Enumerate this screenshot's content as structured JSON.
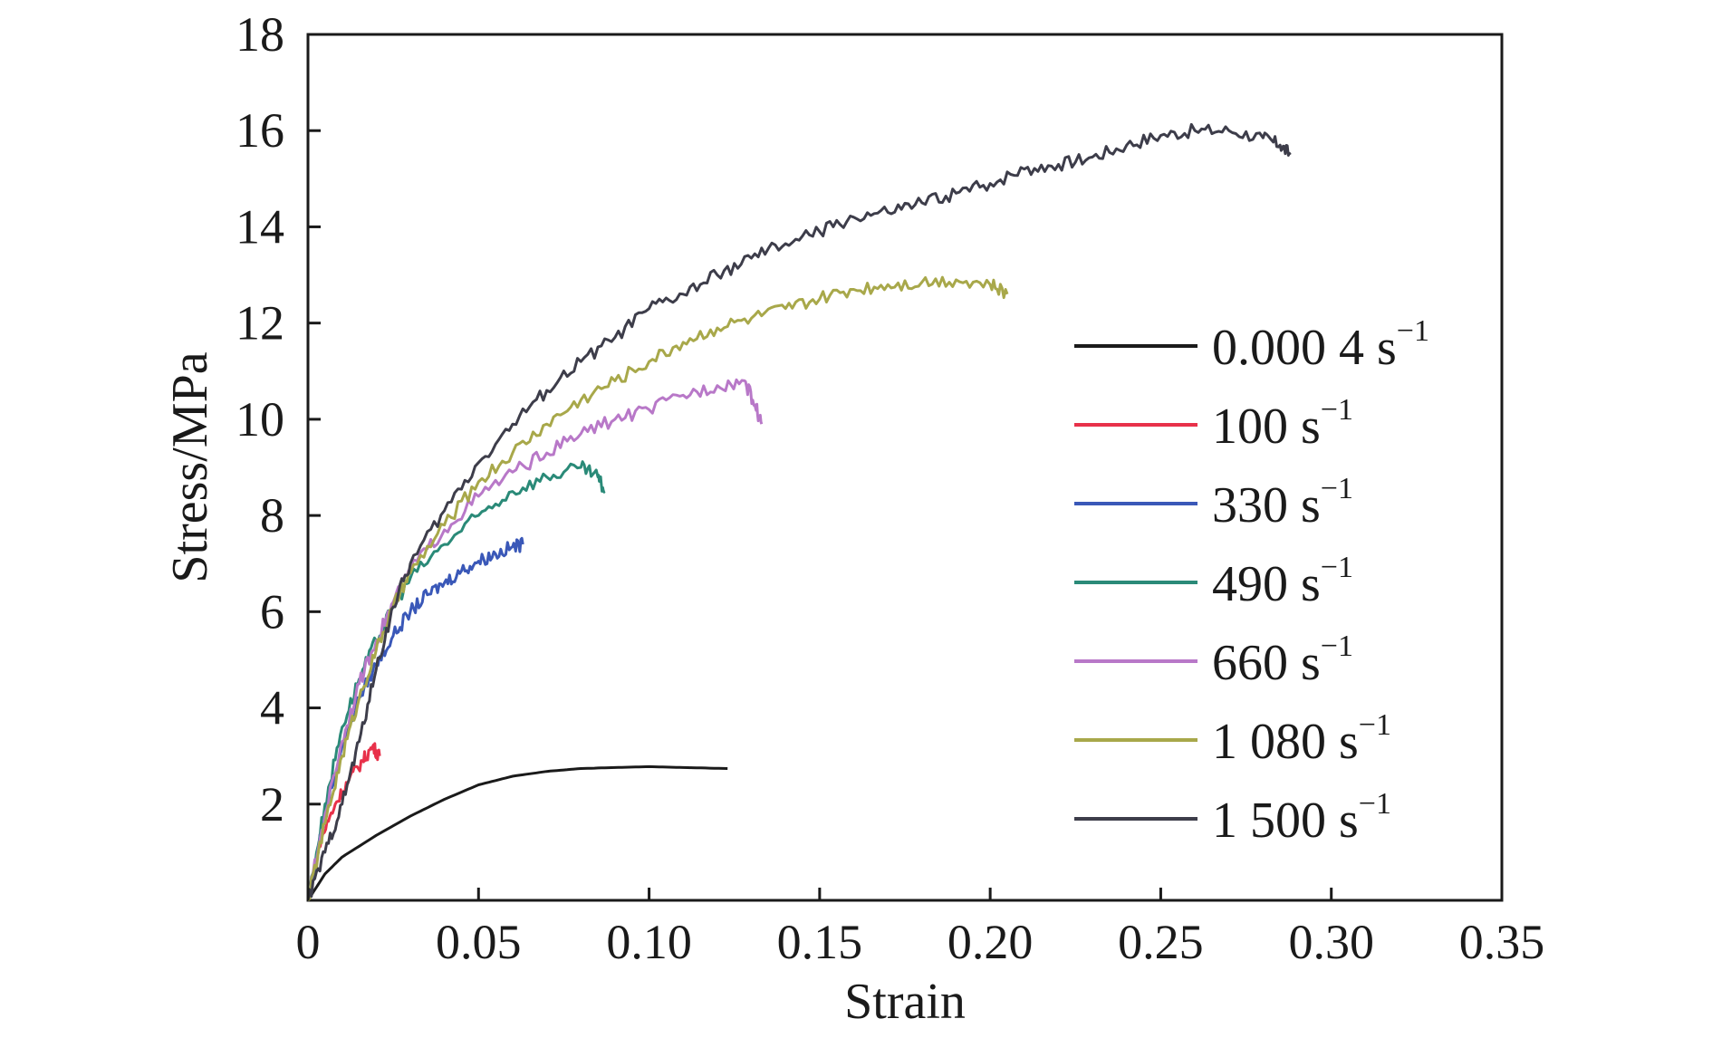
{
  "chart_data": {
    "type": "line",
    "title": "",
    "xlabel": "Strain",
    "ylabel": "Stress/MPa",
    "xlim": [
      0,
      0.35
    ],
    "ylim": [
      0,
      18
    ],
    "x_tick_labels": [
      "0",
      "0.05",
      "0.10",
      "0.15",
      "0.20",
      "0.25",
      "0.30",
      "0.35"
    ],
    "x_tick_values": [
      0,
      0.05,
      0.1,
      0.15,
      0.2,
      0.25,
      0.3,
      0.35
    ],
    "y_tick_labels": [
      "2",
      "4",
      "6",
      "8",
      "10",
      "12",
      "14",
      "16",
      "18"
    ],
    "y_tick_values": [
      2,
      4,
      6,
      8,
      10,
      12,
      14,
      16,
      18
    ],
    "grid": false,
    "legend_position": "right",
    "series": [
      {
        "name": "0.000 4 s",
        "name_exponent": "−1",
        "color": "#1a1a1a",
        "points": [
          [
            0,
            0
          ],
          [
            0.005,
            0.55
          ],
          [
            0.01,
            0.9
          ],
          [
            0.02,
            1.35
          ],
          [
            0.03,
            1.75
          ],
          [
            0.04,
            2.1
          ],
          [
            0.05,
            2.4
          ],
          [
            0.06,
            2.58
          ],
          [
            0.07,
            2.68
          ],
          [
            0.08,
            2.74
          ],
          [
            0.09,
            2.76
          ],
          [
            0.1,
            2.78
          ],
          [
            0.11,
            2.76
          ],
          [
            0.123,
            2.74
          ]
        ]
      },
      {
        "name": "100 s",
        "name_exponent": "−1",
        "color": "#e8314a",
        "points": [
          [
            0,
            0
          ],
          [
            0.004,
            1.3
          ],
          [
            0.008,
            2.0
          ],
          [
            0.012,
            2.5
          ],
          [
            0.016,
            2.9
          ],
          [
            0.019,
            3.2
          ],
          [
            0.021,
            3.0
          ]
        ]
      },
      {
        "name": "330 s",
        "name_exponent": "−1",
        "color": "#3a58b8",
        "points": [
          [
            0,
            0
          ],
          [
            0.005,
            1.8
          ],
          [
            0.01,
            3.2
          ],
          [
            0.015,
            4.2
          ],
          [
            0.02,
            4.9
          ],
          [
            0.025,
            5.5
          ],
          [
            0.03,
            6.0
          ],
          [
            0.035,
            6.35
          ],
          [
            0.04,
            6.6
          ],
          [
            0.045,
            6.85
          ],
          [
            0.05,
            7.05
          ],
          [
            0.055,
            7.2
          ],
          [
            0.06,
            7.35
          ],
          [
            0.063,
            7.4
          ]
        ]
      },
      {
        "name": "490 s",
        "name_exponent": "−1",
        "color": "#2a8a78",
        "points": [
          [
            0,
            0
          ],
          [
            0.005,
            2.0
          ],
          [
            0.01,
            3.6
          ],
          [
            0.015,
            4.6
          ],
          [
            0.02,
            5.4
          ],
          [
            0.025,
            6.1
          ],
          [
            0.03,
            6.7
          ],
          [
            0.04,
            7.4
          ],
          [
            0.05,
            8.0
          ],
          [
            0.06,
            8.5
          ],
          [
            0.07,
            8.8
          ],
          [
            0.08,
            9.0
          ],
          [
            0.085,
            8.8
          ],
          [
            0.087,
            8.5
          ]
        ]
      },
      {
        "name": "660 s",
        "name_exponent": "−1",
        "color": "#b878c8",
        "points": [
          [
            0,
            0
          ],
          [
            0.005,
            1.8
          ],
          [
            0.01,
            3.3
          ],
          [
            0.015,
            4.5
          ],
          [
            0.02,
            5.4
          ],
          [
            0.025,
            6.2
          ],
          [
            0.03,
            6.9
          ],
          [
            0.04,
            7.7
          ],
          [
            0.05,
            8.4
          ],
          [
            0.06,
            8.9
          ],
          [
            0.07,
            9.3
          ],
          [
            0.08,
            9.7
          ],
          [
            0.09,
            10.0
          ],
          [
            0.1,
            10.2
          ],
          [
            0.11,
            10.5
          ],
          [
            0.12,
            10.7
          ],
          [
            0.128,
            10.8
          ],
          [
            0.131,
            10.3
          ],
          [
            0.133,
            9.9
          ]
        ]
      },
      {
        "name": "1 080 s",
        "name_exponent": "−1",
        "color": "#a8a84a",
        "points": [
          [
            0,
            0
          ],
          [
            0.005,
            1.6
          ],
          [
            0.01,
            3.0
          ],
          [
            0.015,
            4.2
          ],
          [
            0.02,
            5.2
          ],
          [
            0.025,
            6.1
          ],
          [
            0.03,
            6.8
          ],
          [
            0.04,
            7.8
          ],
          [
            0.05,
            8.7
          ],
          [
            0.06,
            9.3
          ],
          [
            0.07,
            9.9
          ],
          [
            0.08,
            10.4
          ],
          [
            0.09,
            10.8
          ],
          [
            0.1,
            11.2
          ],
          [
            0.11,
            11.6
          ],
          [
            0.12,
            11.9
          ],
          [
            0.13,
            12.1
          ],
          [
            0.14,
            12.3
          ],
          [
            0.15,
            12.5
          ],
          [
            0.16,
            12.7
          ],
          [
            0.17,
            12.8
          ],
          [
            0.18,
            12.85
          ],
          [
            0.19,
            12.9
          ],
          [
            0.2,
            12.8
          ],
          [
            0.205,
            12.6
          ]
        ]
      },
      {
        "name": "1 500 s",
        "name_exponent": "−1",
        "color": "#3d3d4a",
        "points": [
          [
            0,
            0
          ],
          [
            0.005,
            1.0
          ],
          [
            0.01,
            2.0
          ],
          [
            0.015,
            3.3
          ],
          [
            0.02,
            4.8
          ],
          [
            0.025,
            6.1
          ],
          [
            0.03,
            7.0
          ],
          [
            0.04,
            8.1
          ],
          [
            0.05,
            9.1
          ],
          [
            0.06,
            9.9
          ],
          [
            0.07,
            10.6
          ],
          [
            0.08,
            11.2
          ],
          [
            0.09,
            11.7
          ],
          [
            0.1,
            12.3
          ],
          [
            0.11,
            12.6
          ],
          [
            0.12,
            13.0
          ],
          [
            0.13,
            13.35
          ],
          [
            0.14,
            13.65
          ],
          [
            0.15,
            13.9
          ],
          [
            0.16,
            14.2
          ],
          [
            0.17,
            14.3
          ],
          [
            0.18,
            14.5
          ],
          [
            0.19,
            14.7
          ],
          [
            0.2,
            14.9
          ],
          [
            0.21,
            15.2
          ],
          [
            0.22,
            15.3
          ],
          [
            0.23,
            15.45
          ],
          [
            0.24,
            15.7
          ],
          [
            0.25,
            15.9
          ],
          [
            0.26,
            16.0
          ],
          [
            0.27,
            16.0
          ],
          [
            0.28,
            15.85
          ],
          [
            0.285,
            15.7
          ],
          [
            0.288,
            15.5
          ]
        ]
      }
    ]
  }
}
